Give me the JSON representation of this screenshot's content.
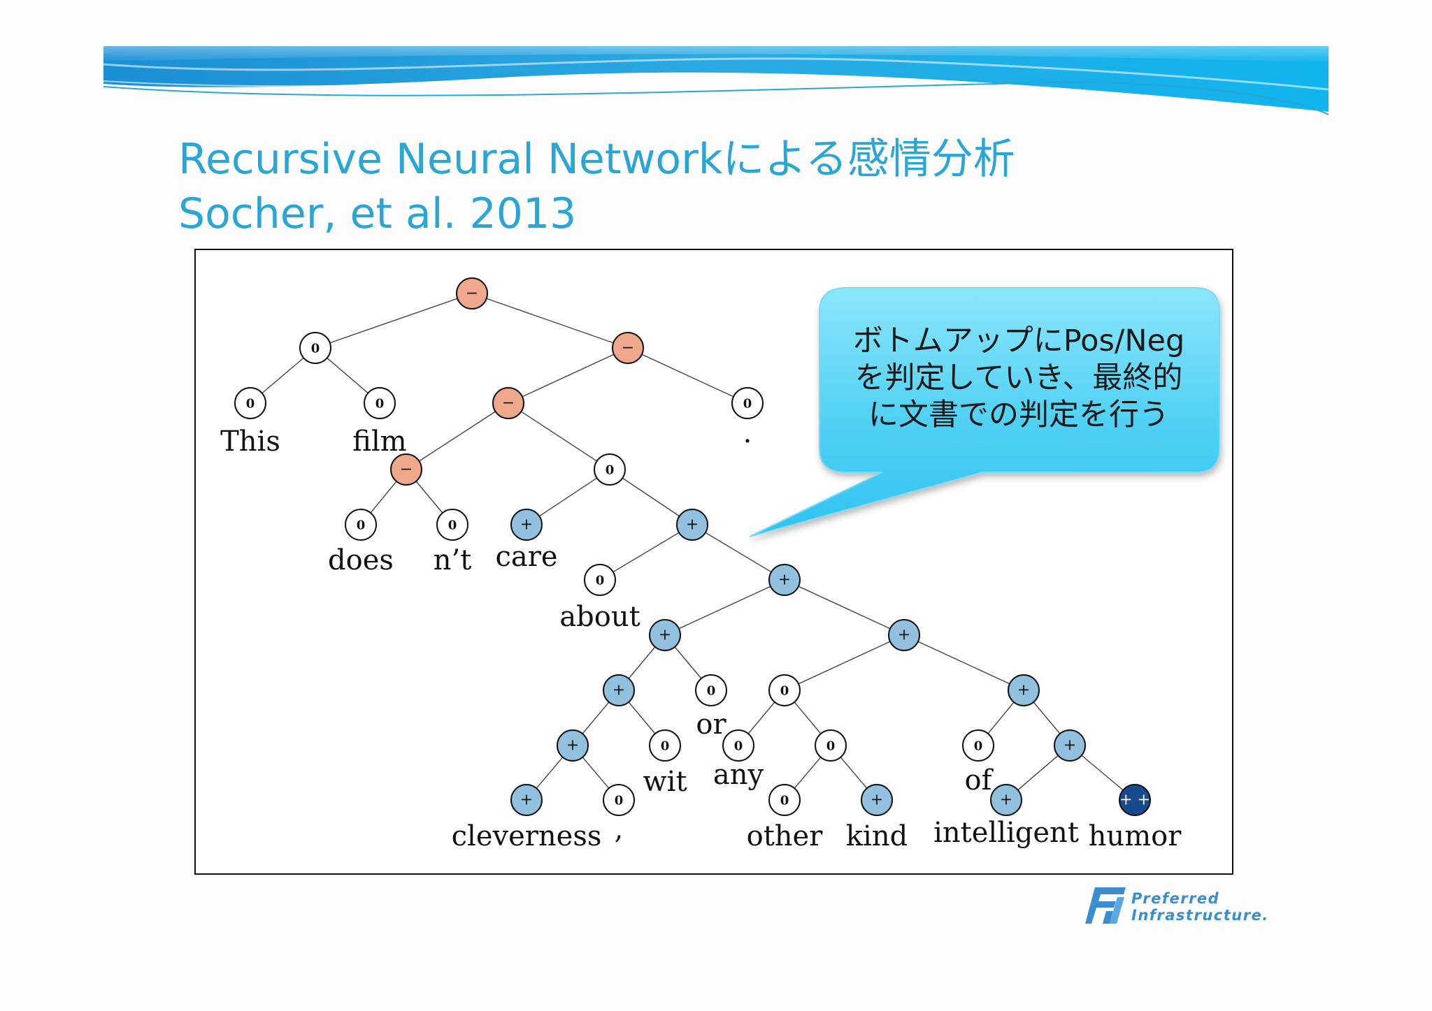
{
  "slide": {
    "title_line_1": "Recursive Neural Networkによる感情分析",
    "title_line_2": "Socher, et al. 2013",
    "title_color": "#2aa6d6"
  },
  "callout": {
    "text": "ボトムアップにPos/Neg\nを判定していき、最終的\nに文書での判定を行う",
    "fill_color": "#5fd4f5"
  },
  "logo": {
    "line_1": "Preferred",
    "line_2": "Infrastructure.",
    "color": "#3a8ed0"
  },
  "tree": {
    "sentiment_colors": {
      "negative": "#f0a88c",
      "neutral": "#ffffff",
      "positive": "#92c0df",
      "very_positive": "#184b8c"
    },
    "nodes": [
      {
        "id": "root",
        "sentiment": "negative",
        "symbol": "−"
      },
      {
        "id": "this-film",
        "sentiment": "neutral",
        "symbol": "0"
      },
      {
        "id": "this",
        "sentiment": "neutral",
        "symbol": "0",
        "word": "This"
      },
      {
        "id": "film",
        "sentiment": "neutral",
        "symbol": "0",
        "word": "film"
      },
      {
        "id": "rest",
        "sentiment": "negative",
        "symbol": "−"
      },
      {
        "id": "vp",
        "sentiment": "negative",
        "symbol": "−"
      },
      {
        "id": "period",
        "sentiment": "neutral",
        "symbol": "0",
        "word": "."
      },
      {
        "id": "doesnt",
        "sentiment": "negative",
        "symbol": "−"
      },
      {
        "id": "does",
        "sentiment": "neutral",
        "symbol": "0",
        "word": "does"
      },
      {
        "id": "nt",
        "sentiment": "neutral",
        "symbol": "0",
        "word": "n’t"
      },
      {
        "id": "care-about",
        "sentiment": "neutral",
        "symbol": "0"
      },
      {
        "id": "care",
        "sentiment": "positive",
        "symbol": "+",
        "word": "care"
      },
      {
        "id": "about-phrase",
        "sentiment": "positive",
        "symbol": "+"
      },
      {
        "id": "about",
        "sentiment": "neutral",
        "symbol": "0",
        "word": "about"
      },
      {
        "id": "np",
        "sentiment": "positive",
        "symbol": "+"
      },
      {
        "id": "np-left",
        "sentiment": "positive",
        "symbol": "+"
      },
      {
        "id": "np-right",
        "sentiment": "positive",
        "symbol": "+"
      },
      {
        "id": "cleverness-wit",
        "sentiment": "positive",
        "symbol": "+"
      },
      {
        "id": "or",
        "sentiment": "neutral",
        "symbol": "0",
        "word": "or"
      },
      {
        "id": "cleverness-comma",
        "sentiment": "positive",
        "symbol": "+"
      },
      {
        "id": "wit",
        "sentiment": "neutral",
        "symbol": "0",
        "word": "wit"
      },
      {
        "id": "cleverness",
        "sentiment": "positive",
        "symbol": "+",
        "word": "cleverness"
      },
      {
        "id": "comma",
        "sentiment": "neutral",
        "symbol": "0",
        "word": ","
      },
      {
        "id": "any-other-kind",
        "sentiment": "neutral",
        "symbol": "0"
      },
      {
        "id": "any",
        "sentiment": "neutral",
        "symbol": "0",
        "word": "any"
      },
      {
        "id": "other-kind",
        "sentiment": "neutral",
        "symbol": "0"
      },
      {
        "id": "other",
        "sentiment": "neutral",
        "symbol": "0",
        "word": "other"
      },
      {
        "id": "kind",
        "sentiment": "positive",
        "symbol": "+",
        "word": "kind"
      },
      {
        "id": "of-phrase",
        "sentiment": "positive",
        "symbol": "+"
      },
      {
        "id": "of",
        "sentiment": "neutral",
        "symbol": "0",
        "word": "of"
      },
      {
        "id": "intelligent-humor",
        "sentiment": "positive",
        "symbol": "+"
      },
      {
        "id": "intelligent",
        "sentiment": "positive",
        "symbol": "+",
        "word": "intelligent"
      },
      {
        "id": "humor",
        "sentiment": "very_positive",
        "symbol": "+ +",
        "word": "humor"
      }
    ],
    "edges": [
      [
        "root",
        "this-film"
      ],
      [
        "root",
        "rest"
      ],
      [
        "this-film",
        "this"
      ],
      [
        "this-film",
        "film"
      ],
      [
        "rest",
        "vp"
      ],
      [
        "rest",
        "period"
      ],
      [
        "vp",
        "doesnt"
      ],
      [
        "vp",
        "care-about"
      ],
      [
        "doesnt",
        "does"
      ],
      [
        "doesnt",
        "nt"
      ],
      [
        "care-about",
        "care"
      ],
      [
        "care-about",
        "about-phrase"
      ],
      [
        "about-phrase",
        "about"
      ],
      [
        "about-phrase",
        "np"
      ],
      [
        "np",
        "np-left"
      ],
      [
        "np",
        "np-right"
      ],
      [
        "np-left",
        "cleverness-wit"
      ],
      [
        "np-left",
        "or"
      ],
      [
        "cleverness-wit",
        "cleverness-comma"
      ],
      [
        "cleverness-wit",
        "wit"
      ],
      [
        "cleverness-comma",
        "cleverness"
      ],
      [
        "cleverness-comma",
        "comma"
      ],
      [
        "np-right",
        "any-other-kind"
      ],
      [
        "np-right",
        "of-phrase"
      ],
      [
        "any-other-kind",
        "any"
      ],
      [
        "any-other-kind",
        "other-kind"
      ],
      [
        "other-kind",
        "other"
      ],
      [
        "other-kind",
        "kind"
      ],
      [
        "of-phrase",
        "of"
      ],
      [
        "of-phrase",
        "intelligent-humor"
      ],
      [
        "intelligent-humor",
        "intelligent"
      ],
      [
        "intelligent-humor",
        "humor"
      ]
    ]
  }
}
